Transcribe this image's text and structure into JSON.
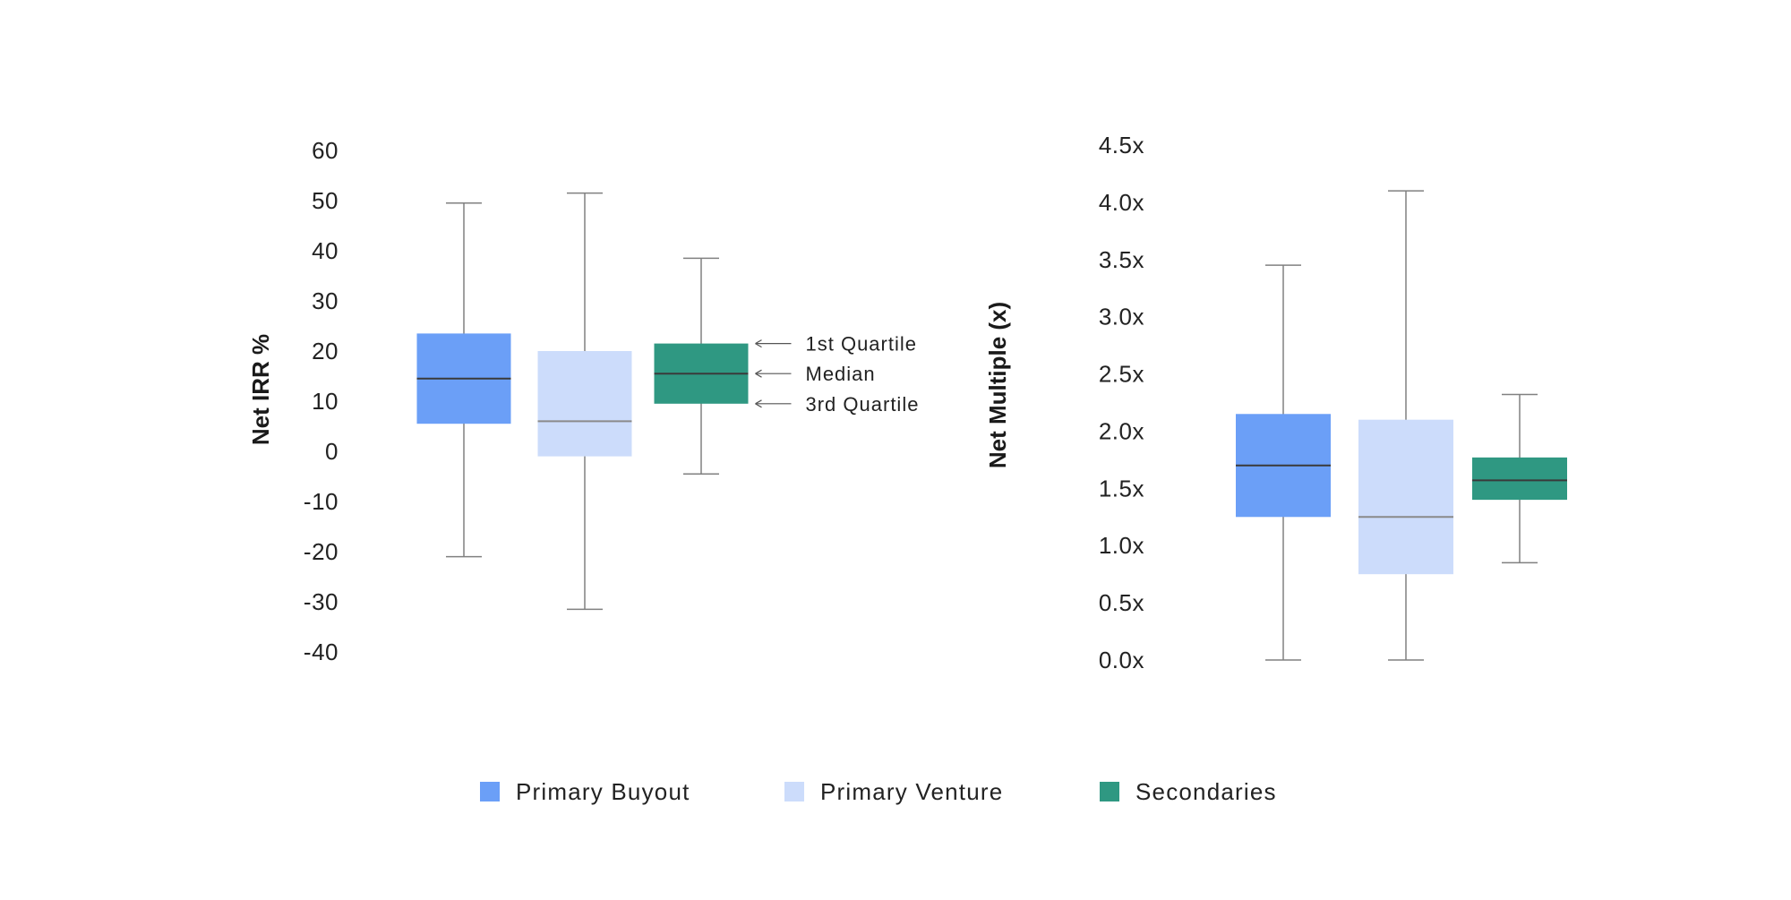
{
  "colors": {
    "primary_buyout": "#6b9ff7",
    "primary_venture": "#ccdcfb",
    "secondaries": "#2f9882",
    "whisker": "#808080",
    "median_dark": "#3a3a3a",
    "median_light": "#8a8a8a",
    "text": "#222222"
  },
  "legend": [
    {
      "label": "Primary Buyout",
      "color": "#6b9ff7"
    },
    {
      "label": "Primary Venture",
      "color": "#ccdcfb"
    },
    {
      "label": "Secondaries",
      "color": "#2f9882"
    }
  ],
  "chart_data": [
    {
      "type": "boxplot",
      "title": "",
      "xlabel": "",
      "ylabel": "Net IRR %",
      "ylim": [
        -40,
        60
      ],
      "yticks": [
        60,
        50,
        40,
        30,
        20,
        10,
        0,
        -10,
        -20,
        -30,
        -40
      ],
      "ytick_labels": [
        "60",
        "50",
        "40",
        "30",
        "20",
        "10",
        "0",
        "-10",
        "-20",
        "-30",
        "-40"
      ],
      "series": [
        {
          "name": "Primary Buyout",
          "min": -21,
          "q1": 5.5,
          "median": 14.5,
          "q3": 23.5,
          "max": 49.5
        },
        {
          "name": "Primary Venture",
          "min": -31.5,
          "q1": -1,
          "median": 6,
          "q3": 20,
          "max": 51.5
        },
        {
          "name": "Secondaries",
          "min": -4.5,
          "q1": 9.5,
          "median": 15.5,
          "q3": 21.5,
          "max": 38.5
        }
      ],
      "annotations": [
        "1st Quartile",
        "Median",
        "3rd Quartile"
      ]
    },
    {
      "type": "boxplot",
      "title": "",
      "xlabel": "",
      "ylabel": "Net Multiple (x)",
      "ylim": [
        0,
        4.5
      ],
      "yticks": [
        4.5,
        4.0,
        3.5,
        3.0,
        2.5,
        2.0,
        1.5,
        1.0,
        0.5,
        0.0
      ],
      "ytick_labels": [
        "4.5x",
        "4.0x",
        "3.5x",
        "3.0x",
        "2.5x",
        "2.0x",
        "1.5x",
        "1.0x",
        "0.5x",
        "0.0x"
      ],
      "series": [
        {
          "name": "Primary Buyout",
          "min": 0.0,
          "q1": 1.25,
          "median": 1.7,
          "q3": 2.15,
          "max": 3.45
        },
        {
          "name": "Primary Venture",
          "min": 0.0,
          "q1": 0.75,
          "median": 1.25,
          "q3": 2.1,
          "max": 4.1
        },
        {
          "name": "Secondaries",
          "min": 0.85,
          "q1": 1.4,
          "median": 1.57,
          "q3": 1.77,
          "max": 2.32
        }
      ]
    }
  ]
}
